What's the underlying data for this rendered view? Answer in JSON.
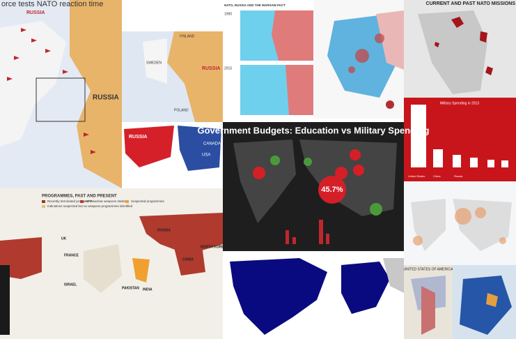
{
  "reaction_map": {
    "title": "orce tests NATO reaction time",
    "russia": "RUSSIA",
    "finland": "FINLAND",
    "sweden": "SWEDEN",
    "poland": "POLAND",
    "zoom_russia": "RUSSIA",
    "inset_russia": "RUSSIA",
    "inset_canada": "CANADA",
    "inset_usa": "USA"
  },
  "warsaw_pact": {
    "title": "NATO, RUSSIA AND THE WARSAW PACT",
    "year_1": "1990",
    "year_2": "2015"
  },
  "nato_missions": {
    "title": "CURRENT AND PAST NATO MISSIONS"
  },
  "military_spending": {
    "title": "Military Spending in 2013",
    "labels": [
      "United States",
      "China",
      "Russia"
    ]
  },
  "budgets": {
    "title": "Government Budgets: Education vs Military Spending",
    "highlight": "45.7%"
  },
  "nuclear": {
    "title": "PROGRAMMES, PAST AND PRESENT",
    "legend": [
      "Recently terminated programmes",
      "NPT nuclear weapons states",
      "Suspected programmes",
      "Indications suspected but no weapons programmes identified"
    ],
    "countries": [
      "RUSSIA",
      "CHINA",
      "PAKISTAN",
      "INDIA",
      "UK",
      "FRANCE",
      "NORTH KOREA",
      "ISRAEL"
    ]
  },
  "newspaper": {
    "title": "UNITED STATES OF AMERICA"
  }
}
